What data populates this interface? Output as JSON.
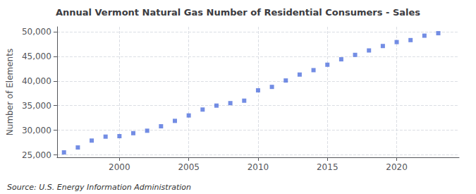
{
  "chart_data": {
    "type": "scatter",
    "title": "Annual Vermont Natural Gas Number of Residential Consumers - Sales",
    "ylabel": "Number of Elements",
    "annotations": [
      "Source: U.S. Energy Information Administration"
    ],
    "x": [
      1996,
      1997,
      1998,
      1999,
      2000,
      2001,
      2002,
      2003,
      2004,
      2005,
      2006,
      2007,
      2008,
      2009,
      2010,
      2011,
      2012,
      2013,
      2014,
      2015,
      2016,
      2017,
      2018,
      2019,
      2020,
      2021,
      2022,
      2023
    ],
    "values": [
      25500,
      26500,
      27900,
      28700,
      28800,
      29400,
      29900,
      30800,
      31900,
      33000,
      34200,
      35000,
      35500,
      36000,
      38100,
      38800,
      40100,
      41300,
      42200,
      43300,
      44400,
      45300,
      46200,
      47100,
      47900,
      48300,
      49200,
      49700
    ],
    "marker": "square",
    "xlim": [
      1995.5,
      2024.5
    ],
    "xticks": [
      2000,
      2005,
      2010,
      2015,
      2020
    ],
    "ylim": [
      24500,
      51000
    ],
    "yticks": [
      {
        "value": 25000,
        "label": "25,000"
      },
      {
        "value": 30000,
        "label": "30,000"
      },
      {
        "value": 35000,
        "label": "35,000"
      },
      {
        "value": 40000,
        "label": "40,000"
      },
      {
        "value": 45000,
        "label": "45,000"
      },
      {
        "value": 50000,
        "label": "50,000"
      }
    ],
    "grid": true
  }
}
